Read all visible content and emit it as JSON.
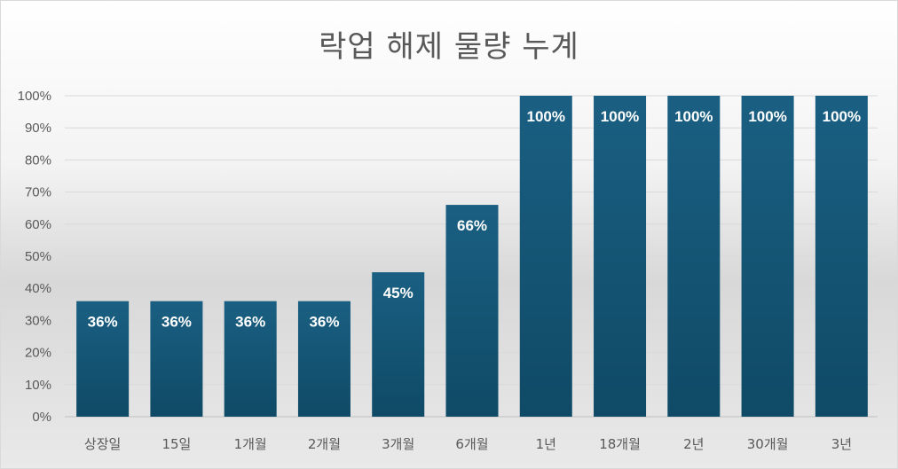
{
  "chart_data": {
    "type": "bar",
    "title": "락업 해제 물량 누계",
    "categories": [
      "상장일",
      "15일",
      "1개월",
      "2개월",
      "3개월",
      "6개월",
      "1년",
      "18개월",
      "2년",
      "30개월",
      "3년"
    ],
    "values": [
      36,
      36,
      36,
      36,
      45,
      66,
      100,
      100,
      100,
      100,
      100
    ],
    "data_labels": [
      "36%",
      "36%",
      "36%",
      "36%",
      "45%",
      "66%",
      "100%",
      "100%",
      "100%",
      "100%",
      "100%"
    ],
    "y_ticks": [
      "0%",
      "10%",
      "20%",
      "30%",
      "40%",
      "50%",
      "60%",
      "70%",
      "80%",
      "90%",
      "100%"
    ],
    "ylim": [
      0,
      100
    ],
    "grid": true,
    "xlabel": "",
    "ylabel": "",
    "bar_color_top": "#1a5f82",
    "bar_color_bottom": "#0f4a66"
  }
}
